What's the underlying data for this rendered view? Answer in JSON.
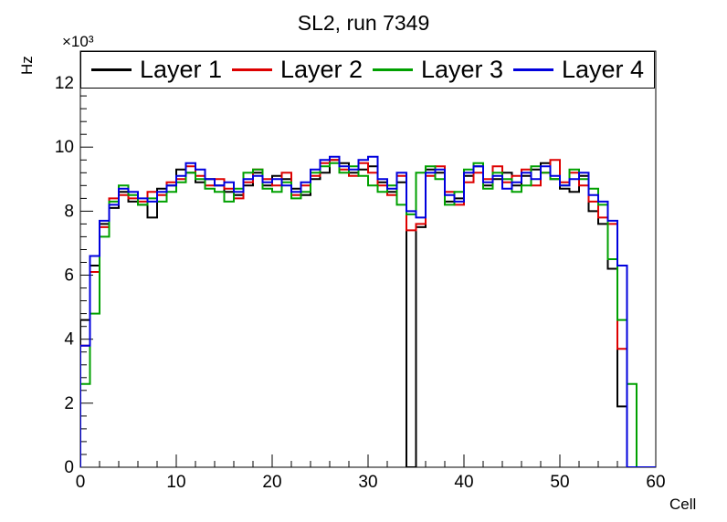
{
  "chart_data": {
    "type": "line",
    "subtype": "step-histogram",
    "title": "SL2, run 7349",
    "xlabel": "Cell",
    "ylabel": "Hz",
    "y_multiplier": "×10³",
    "xlim": [
      0,
      60
    ],
    "ylim": [
      0,
      13000
    ],
    "bin_width": 1,
    "grid": false,
    "x_major_tick_values": [
      0,
      10,
      20,
      30,
      40,
      50,
      60
    ],
    "x_major_tick_labels": [
      "0",
      "10",
      "20",
      "30",
      "40",
      "50",
      "60"
    ],
    "x_minor_step": 2,
    "y_major_tick_values": [
      0,
      2000,
      4000,
      6000,
      8000,
      10000,
      12000
    ],
    "y_major_tick_labels": [
      "0",
      "2",
      "4",
      "6",
      "8",
      "10",
      "12"
    ],
    "y_minor_step": 400,
    "legend": {
      "position": "top",
      "orientation": "horizontal"
    },
    "series": [
      {
        "name": "Layer 1",
        "color": "#000000",
        "values": [
          4600,
          6300,
          7600,
          8100,
          8600,
          8300,
          8200,
          7800,
          8700,
          8800,
          9300,
          9200,
          8900,
          9000,
          8800,
          8600,
          8500,
          8800,
          9200,
          8800,
          9100,
          9000,
          8700,
          8500,
          9000,
          9200,
          9600,
          9500,
          9200,
          9300,
          9400,
          8900,
          8600,
          8900,
          0,
          7500,
          9300,
          9200,
          8300,
          8400,
          9100,
          9400,
          8800,
          9000,
          9200,
          8800,
          9100,
          9300,
          9500,
          9000,
          8700,
          8600,
          9100,
          8000,
          7600,
          6200,
          1900,
          0,
          0,
          0
        ]
      },
      {
        "name": "Layer 2",
        "color": "#dd0000",
        "values": [
          3800,
          6100,
          7500,
          8400,
          8500,
          8400,
          8300,
          8600,
          8500,
          8900,
          9000,
          9400,
          9100,
          8800,
          9000,
          8700,
          8400,
          8900,
          9300,
          9000,
          8800,
          9200,
          8500,
          8800,
          9100,
          9500,
          9600,
          9300,
          9100,
          9500,
          9200,
          8800,
          8500,
          9100,
          7400,
          7600,
          9100,
          9400,
          8600,
          8200,
          8900,
          9200,
          9000,
          9400,
          8900,
          9100,
          9300,
          8800,
          9200,
          9600,
          8900,
          9200,
          8800,
          8300,
          7800,
          7600,
          3700,
          0,
          0,
          0
        ]
      },
      {
        "name": "Layer 3",
        "color": "#00a000",
        "values": [
          2600,
          4800,
          7200,
          8300,
          8800,
          8500,
          8200,
          8400,
          8300,
          8600,
          8900,
          9200,
          9000,
          8700,
          8600,
          8300,
          8700,
          9200,
          9300,
          8700,
          8600,
          8900,
          8400,
          8600,
          9200,
          9400,
          9500,
          9200,
          9400,
          9100,
          8800,
          8600,
          8800,
          8200,
          7900,
          9200,
          9400,
          9000,
          8200,
          8600,
          9300,
          9500,
          8700,
          9200,
          9000,
          8600,
          8800,
          9400,
          9200,
          9000,
          8800,
          9300,
          9000,
          8700,
          8200,
          6500,
          4600,
          2600,
          0,
          0
        ]
      },
      {
        "name": "Layer 4",
        "color": "#0000dd",
        "values": [
          3800,
          6600,
          7700,
          8200,
          8700,
          8600,
          8400,
          8300,
          8600,
          8800,
          9100,
          9500,
          9300,
          9000,
          8800,
          8900,
          8600,
          9000,
          9100,
          8900,
          9000,
          8800,
          8600,
          8900,
          9300,
          9600,
          9700,
          9400,
          9300,
          9600,
          9700,
          9000,
          8700,
          9200,
          8000,
          7800,
          9200,
          9300,
          8500,
          8300,
          9200,
          9400,
          8900,
          9100,
          8700,
          8900,
          9200,
          9000,
          9400,
          9100,
          8800,
          9000,
          9200,
          8500,
          8300,
          7700,
          6300,
          0,
          0,
          0
        ]
      }
    ]
  }
}
